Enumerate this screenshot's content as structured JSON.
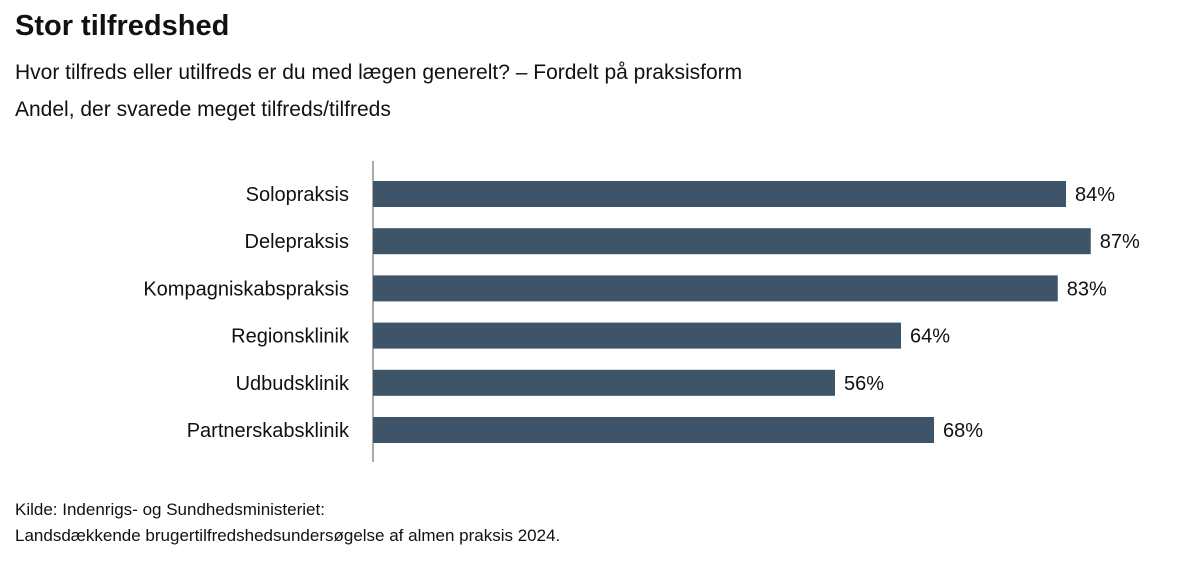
{
  "title": "Stor tilfredshed",
  "subtitle": "Hvor tilfreds eller utilfreds er du med lægen generelt? – Fordelt på praksisform",
  "subtitle2": "Andel, der svarede meget tilfreds/tilfreds",
  "source_line1": "Kilde: Indenrigs- og Sundhedsministeriet:",
  "source_line2": "Landsdækkende brugertilfredshedsundersøgelse af almen praksis 2024.",
  "chart_data": {
    "type": "bar",
    "orientation": "horizontal",
    "title": "Stor tilfredshed",
    "categories": [
      "Solopraksis",
      "Delepraksis",
      "Kompagniskabspraksis",
      "Regionsklinik",
      "Udbudsklinik",
      "Partnerskabsklinik"
    ],
    "values": [
      84,
      87,
      83,
      64,
      56,
      68
    ],
    "labels": [
      "84%",
      "87%",
      "83%",
      "64%",
      "56%",
      "68%"
    ],
    "xlim": [
      0,
      100
    ],
    "unit": "%",
    "grid": false,
    "bar_color": "#3e5468"
  }
}
